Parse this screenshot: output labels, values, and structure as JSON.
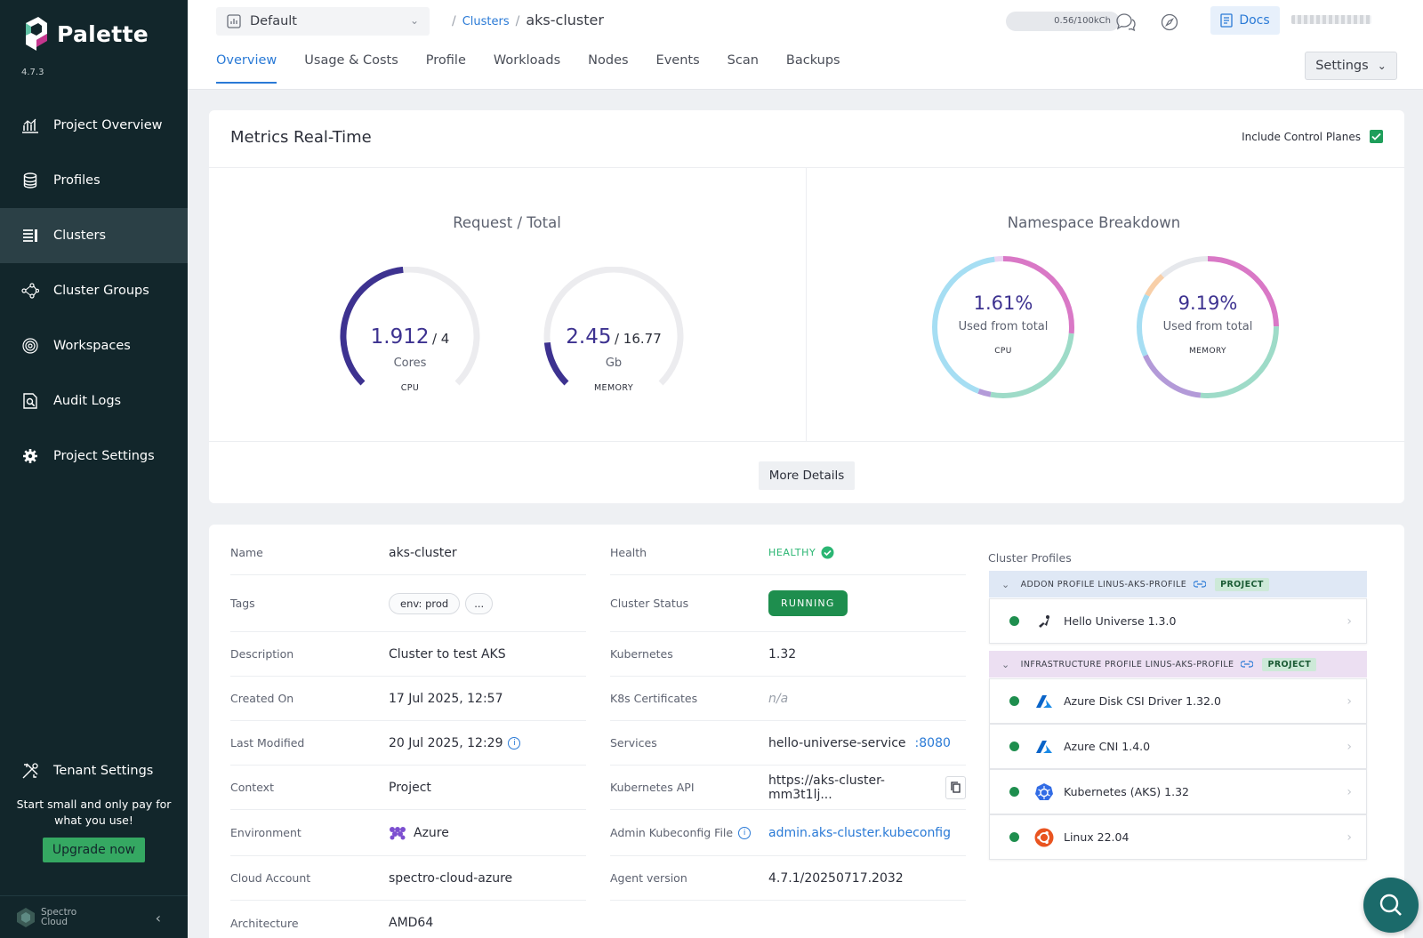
{
  "app": {
    "name": "Palette",
    "version": "4.7.3"
  },
  "sidebar": {
    "items": [
      {
        "label": "Project Overview",
        "icon": "chart-icon"
      },
      {
        "label": "Profiles",
        "icon": "stack-icon"
      },
      {
        "label": "Clusters",
        "icon": "clusters-icon",
        "active": true
      },
      {
        "label": "Cluster Groups",
        "icon": "network-icon"
      },
      {
        "label": "Workspaces",
        "icon": "target-icon"
      },
      {
        "label": "Audit Logs",
        "icon": "audit-icon"
      },
      {
        "label": "Project Settings",
        "icon": "gear-icon"
      }
    ],
    "tenant_settings": "Tenant Settings",
    "promo_text": "Start small and only pay for what you use!",
    "upgrade_label": "Upgrade now",
    "footer_brand_line1": "Spectro",
    "footer_brand_line2": "Cloud"
  },
  "topbar": {
    "scope": "Default",
    "breadcrumb_link": "Clusters",
    "breadcrumb_current": "aks-cluster",
    "usage": "0.56/100kCh",
    "docs_label": "Docs",
    "settings_label": "Settings"
  },
  "tabs": [
    "Overview",
    "Usage & Costs",
    "Profile",
    "Workloads",
    "Nodes",
    "Events",
    "Scan",
    "Backups"
  ],
  "metrics": {
    "title": "Metrics Real-Time",
    "include_control_planes": "Include Control Planes",
    "request_total_title": "Request / Total",
    "namespace_title": "Namespace Breakdown",
    "cpu_gauge": {
      "value": "1.912",
      "total": "/ 4",
      "unit": "Cores",
      "label": "CPU",
      "fraction": 0.478
    },
    "memory_gauge": {
      "value": "2.45",
      "total": "/ 16.77",
      "unit": "Gb",
      "label": "MEMORY",
      "fraction": 0.146
    },
    "cpu_donut": {
      "pct": "1.61%",
      "sub": "Used from total",
      "label": "CPU"
    },
    "memory_donut": {
      "pct": "9.19%",
      "sub": "Used from total",
      "label": "MEMORY"
    },
    "more_details": "More Details"
  },
  "details": {
    "left": [
      {
        "label": "Name",
        "value": "aks-cluster"
      },
      {
        "label": "Tags",
        "tags": [
          "env: prod",
          "..."
        ]
      },
      {
        "label": "Description",
        "value": "Cluster to test AKS"
      },
      {
        "label": "Created On",
        "value": "17 Jul 2025, 12:57"
      },
      {
        "label": "Last Modified",
        "value": "20 Jul 2025, 12:29"
      },
      {
        "label": "Context",
        "value": "Project"
      },
      {
        "label": "Environment",
        "value": "Azure"
      },
      {
        "label": "Cloud Account",
        "value": "spectro-cloud-azure"
      },
      {
        "label": "Architecture",
        "value": "AMD64"
      }
    ],
    "right": [
      {
        "label": "Health",
        "value": "HEALTHY"
      },
      {
        "label": "Cluster Status",
        "value": "RUNNING"
      },
      {
        "label": "Kubernetes",
        "value": "1.32"
      },
      {
        "label": "K8s Certificates",
        "value": "n/a"
      },
      {
        "label": "Services",
        "value": "hello-universe-service",
        "port": ":8080"
      },
      {
        "label": "Kubernetes API",
        "value": "https://aks-cluster-mm3t1lj..."
      },
      {
        "label": "Admin Kubeconfig File",
        "value": "admin.aks-cluster.kubeconfig"
      },
      {
        "label": "Agent version",
        "value": "4.7.1/20250717.2032"
      }
    ]
  },
  "cluster_profiles": {
    "title": "Cluster Profiles",
    "addon_header": "ADDON PROFILE LINUS-AKS-PROFILE",
    "infra_header": "INFRASTRUCTURE PROFILE LINUS-AKS-PROFILE",
    "badge": "PROJECT",
    "addon_layers": [
      {
        "name": "Hello Universe 1.3.0",
        "icon": "hello-universe-icon"
      }
    ],
    "infra_layers": [
      {
        "name": "Azure Disk CSI Driver 1.32.0",
        "icon": "azure-icon"
      },
      {
        "name": "Azure CNI 1.4.0",
        "icon": "azure-icon"
      },
      {
        "name": "Kubernetes (AKS) 1.32",
        "icon": "kubernetes-icon"
      },
      {
        "name": "Linux 22.04",
        "icon": "ubuntu-icon"
      }
    ]
  },
  "colors": {
    "sidebar": "#12262b",
    "accent": "#2a7ad6",
    "success": "#1e8e4e",
    "gauge": "#3d3290"
  }
}
